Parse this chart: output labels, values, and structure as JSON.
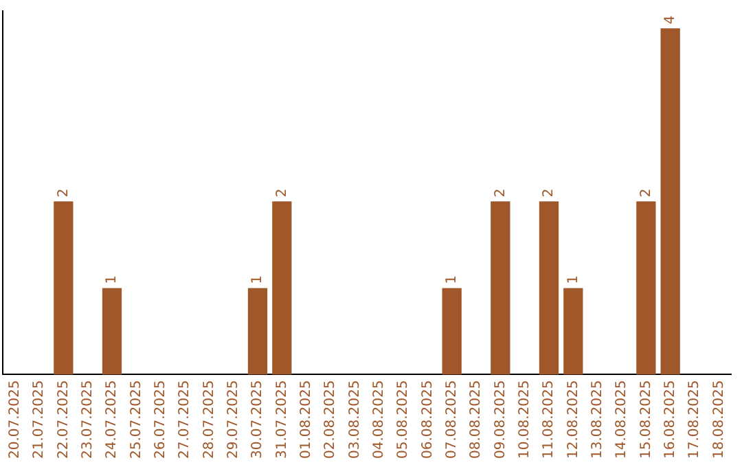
{
  "chart_data": {
    "type": "bar",
    "categories": [
      "20.07.2025",
      "21.07.2025",
      "22.07.2025",
      "23.07.2025",
      "24.07.2025",
      "25.07.2025",
      "26.07.2025",
      "27.07.2025",
      "28.07.2025",
      "29.07.2025",
      "30.07.2025",
      "31.07.2025",
      "01.08.2025",
      "02.08.2025",
      "03.08.2025",
      "04.08.2025",
      "05.08.2025",
      "06.08.2025",
      "07.08.2025",
      "08.08.2025",
      "09.08.2025",
      "10.08.2025",
      "11.08.2025",
      "12.08.2025",
      "13.08.2025",
      "14.08.2025",
      "15.08.2025",
      "16.08.2025",
      "17.08.2025",
      "18.08.2025"
    ],
    "values": [
      0,
      0,
      2,
      0,
      1,
      0,
      0,
      0,
      0,
      0,
      1,
      2,
      0,
      0,
      0,
      0,
      0,
      0,
      1,
      0,
      2,
      0,
      2,
      1,
      0,
      0,
      2,
      4,
      0,
      0
    ],
    "color": "#a0572a",
    "ylim": [
      0,
      4.2
    ],
    "value_labels": [
      null,
      null,
      "2",
      null,
      "1",
      null,
      null,
      null,
      null,
      null,
      "1",
      "2",
      null,
      null,
      null,
      null,
      null,
      null,
      "1",
      null,
      "2",
      null,
      "2",
      "1",
      null,
      null,
      "2",
      "4",
      null,
      null
    ],
    "tick_labels": "x",
    "grid": false,
    "legend": false
  }
}
